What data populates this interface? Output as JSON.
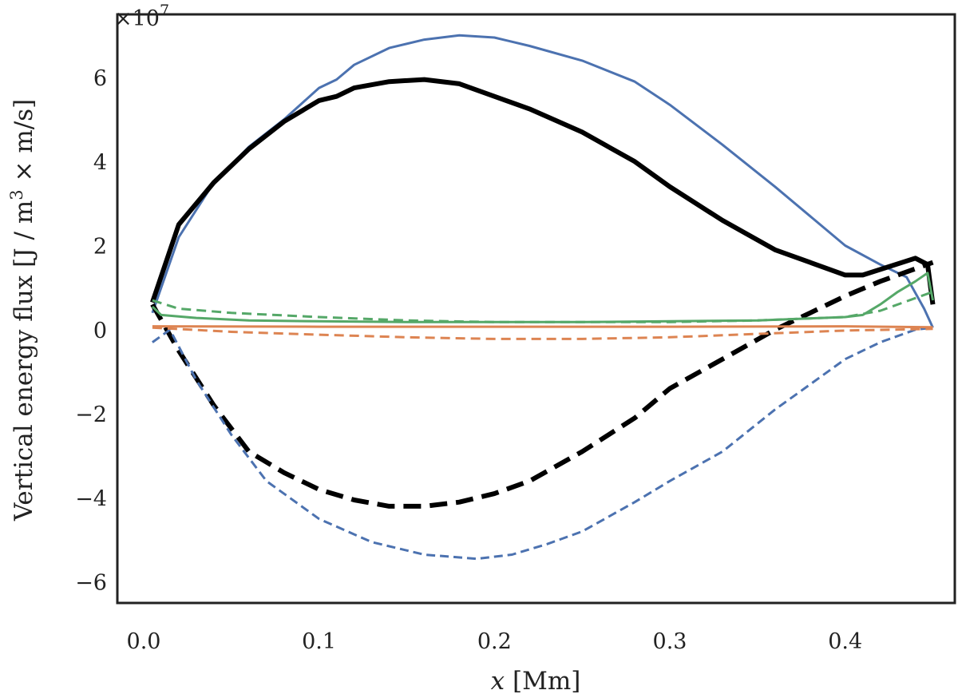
{
  "chart_data": {
    "type": "line",
    "title": "",
    "xlabel_var": "x",
    "xlabel_unit": " [Mm]",
    "ylabel_pre": "Vertical energy flux [J / m",
    "ylabel_sup": "3",
    "ylabel_post": " × m/s]",
    "offset_base": "×10",
    "offset_exp": "7",
    "xlim": [
      -0.015,
      0.4625
    ],
    "ylim": [
      -6.5,
      7.5
    ],
    "x_ticks": [
      0.0,
      0.1,
      0.2,
      0.3,
      0.4
    ],
    "x_tick_labels": [
      "0.0",
      "0.1",
      "0.2",
      "0.3",
      "0.4"
    ],
    "y_ticks": [
      -6,
      -4,
      -2,
      0,
      2,
      4,
      6
    ],
    "y_tick_labels": [
      "−6",
      "−4",
      "−2",
      "0",
      "2",
      "4",
      "6"
    ],
    "grid": false,
    "colors": {
      "blue": "#4c72b0",
      "black": "#000000",
      "green": "#55a868",
      "orange": "#dd8452"
    },
    "series": [
      {
        "name": "blue-solid",
        "color": "#4c72b0",
        "dash": "solid",
        "width": 3,
        "x": [
          0.005,
          0.02,
          0.04,
          0.06,
          0.08,
          0.1,
          0.11,
          0.12,
          0.14,
          0.16,
          0.18,
          0.2,
          0.22,
          0.25,
          0.28,
          0.3,
          0.33,
          0.36,
          0.38,
          0.4,
          0.42,
          0.435,
          0.445,
          0.45
        ],
        "y": [
          0.4,
          2.2,
          3.5,
          4.35,
          5.0,
          5.75,
          5.95,
          6.3,
          6.7,
          6.9,
          7.0,
          6.95,
          6.75,
          6.4,
          5.9,
          5.35,
          4.4,
          3.4,
          2.7,
          2.0,
          1.55,
          1.25,
          0.5,
          0.05
        ]
      },
      {
        "name": "black-solid",
        "color": "#000000",
        "dash": "solid",
        "width": 6,
        "x": [
          0.005,
          0.02,
          0.04,
          0.06,
          0.08,
          0.1,
          0.11,
          0.12,
          0.14,
          0.16,
          0.18,
          0.2,
          0.22,
          0.25,
          0.28,
          0.3,
          0.33,
          0.36,
          0.38,
          0.4,
          0.41,
          0.425,
          0.44,
          0.447,
          0.45
        ],
        "y": [
          0.65,
          2.5,
          3.5,
          4.3,
          4.95,
          5.45,
          5.55,
          5.75,
          5.9,
          5.95,
          5.85,
          5.55,
          5.25,
          4.7,
          4.0,
          3.4,
          2.6,
          1.9,
          1.6,
          1.3,
          1.3,
          1.5,
          1.7,
          1.55,
          0.6
        ]
      },
      {
        "name": "black-dashed",
        "color": "#000000",
        "dash": "22,11",
        "width": 6,
        "x": [
          0.005,
          0.02,
          0.04,
          0.06,
          0.08,
          0.1,
          0.12,
          0.14,
          0.16,
          0.18,
          0.2,
          0.22,
          0.25,
          0.28,
          0.3,
          0.33,
          0.36,
          0.38,
          0.4,
          0.42,
          0.44,
          0.45
        ],
        "y": [
          0.6,
          -0.5,
          -1.8,
          -2.9,
          -3.4,
          -3.8,
          -4.05,
          -4.2,
          -4.2,
          -4.1,
          -3.9,
          -3.6,
          -2.9,
          -2.1,
          -1.4,
          -0.7,
          0.0,
          0.4,
          0.8,
          1.15,
          1.45,
          1.6
        ]
      },
      {
        "name": "blue-dashed",
        "color": "#4c72b0",
        "dash": "11,6",
        "width": 3,
        "x": [
          0.005,
          0.015,
          0.03,
          0.05,
          0.07,
          0.1,
          0.13,
          0.16,
          0.19,
          0.21,
          0.23,
          0.25,
          0.28,
          0.3,
          0.33,
          0.36,
          0.38,
          0.4,
          0.42,
          0.44,
          0.45
        ],
        "y": [
          -0.3,
          0.0,
          -1.2,
          -2.5,
          -3.6,
          -4.5,
          -5.05,
          -5.35,
          -5.45,
          -5.35,
          -5.1,
          -4.8,
          -4.1,
          -3.6,
          -2.9,
          -1.9,
          -1.3,
          -0.7,
          -0.3,
          0.0,
          0.05
        ]
      },
      {
        "name": "green-solid",
        "color": "#55a868",
        "dash": "solid",
        "width": 3,
        "x": [
          0.005,
          0.01,
          0.03,
          0.06,
          0.1,
          0.15,
          0.2,
          0.25,
          0.3,
          0.35,
          0.4,
          0.41,
          0.42,
          0.43,
          0.44,
          0.447,
          0.45
        ],
        "y": [
          0.55,
          0.35,
          0.28,
          0.22,
          0.2,
          0.18,
          0.18,
          0.18,
          0.2,
          0.22,
          0.3,
          0.35,
          0.6,
          0.9,
          1.15,
          1.35,
          0.7
        ]
      },
      {
        "name": "green-dashed",
        "color": "#55a868",
        "dash": "12,7",
        "width": 3,
        "x": [
          0.005,
          0.02,
          0.05,
          0.1,
          0.15,
          0.2,
          0.25,
          0.3,
          0.35,
          0.4,
          0.42,
          0.44,
          0.45
        ],
        "y": [
          0.7,
          0.5,
          0.4,
          0.3,
          0.22,
          0.18,
          0.18,
          0.18,
          0.22,
          0.3,
          0.45,
          0.75,
          0.9
        ]
      },
      {
        "name": "orange-solid",
        "color": "#dd8452",
        "dash": "solid",
        "width": 3,
        "x": [
          0.005,
          0.1,
          0.2,
          0.3,
          0.4,
          0.45
        ],
        "y": [
          0.08,
          0.07,
          0.07,
          0.07,
          0.08,
          0.06
        ]
      },
      {
        "name": "orange-dashed",
        "color": "#dd8452",
        "dash": "12,7",
        "width": 3,
        "x": [
          0.005,
          0.05,
          0.1,
          0.15,
          0.2,
          0.25,
          0.3,
          0.35,
          0.4,
          0.45
        ],
        "y": [
          0.05,
          -0.05,
          -0.12,
          -0.18,
          -0.22,
          -0.22,
          -0.18,
          -0.1,
          -0.02,
          0.02
        ]
      }
    ]
  }
}
